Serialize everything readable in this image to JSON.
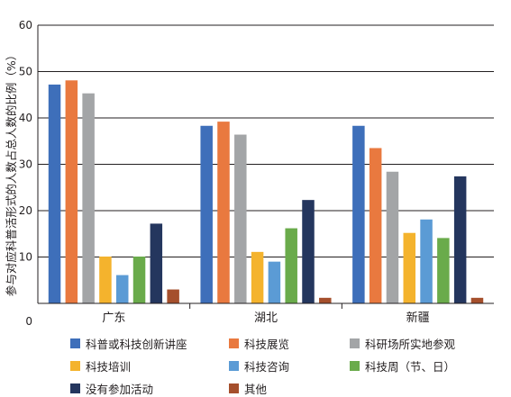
{
  "chart_data": {
    "type": "bar",
    "ylabel": "参与对应科普活形式的人数占总人数的比例（%）",
    "ylim": [
      0,
      60
    ],
    "yticks": [
      0,
      10,
      20,
      30,
      40,
      50,
      60
    ],
    "grid": true,
    "legend_position": "bottom",
    "categories": [
      "广东",
      "湖北",
      "新疆"
    ],
    "series": [
      {
        "name": "科普或科技创新讲座",
        "color": "#3e6fba",
        "values": [
          47.2,
          38.3,
          38.3
        ]
      },
      {
        "name": "科技展览",
        "color": "#e9793f",
        "values": [
          48.1,
          39.2,
          33.5
        ]
      },
      {
        "name": "科研场所实地参观",
        "color": "#a3a5a7",
        "values": [
          45.3,
          36.4,
          28.4
        ]
      },
      {
        "name": "科技培训",
        "color": "#f4b32d",
        "values": [
          10.1,
          11.1,
          15.2
        ]
      },
      {
        "name": "科技咨询",
        "color": "#5b9bd5",
        "values": [
          6.1,
          9.0,
          18.1
        ]
      },
      {
        "name": "科技周（节、日）",
        "color": "#6aab4b",
        "values": [
          10.1,
          16.2,
          14.1
        ]
      },
      {
        "name": "没有参加活动",
        "color": "#24365e",
        "values": [
          17.2,
          22.3,
          27.4
        ]
      },
      {
        "name": "其他",
        "color": "#a54f2c",
        "values": [
          3.0,
          1.2,
          1.2
        ]
      }
    ]
  }
}
